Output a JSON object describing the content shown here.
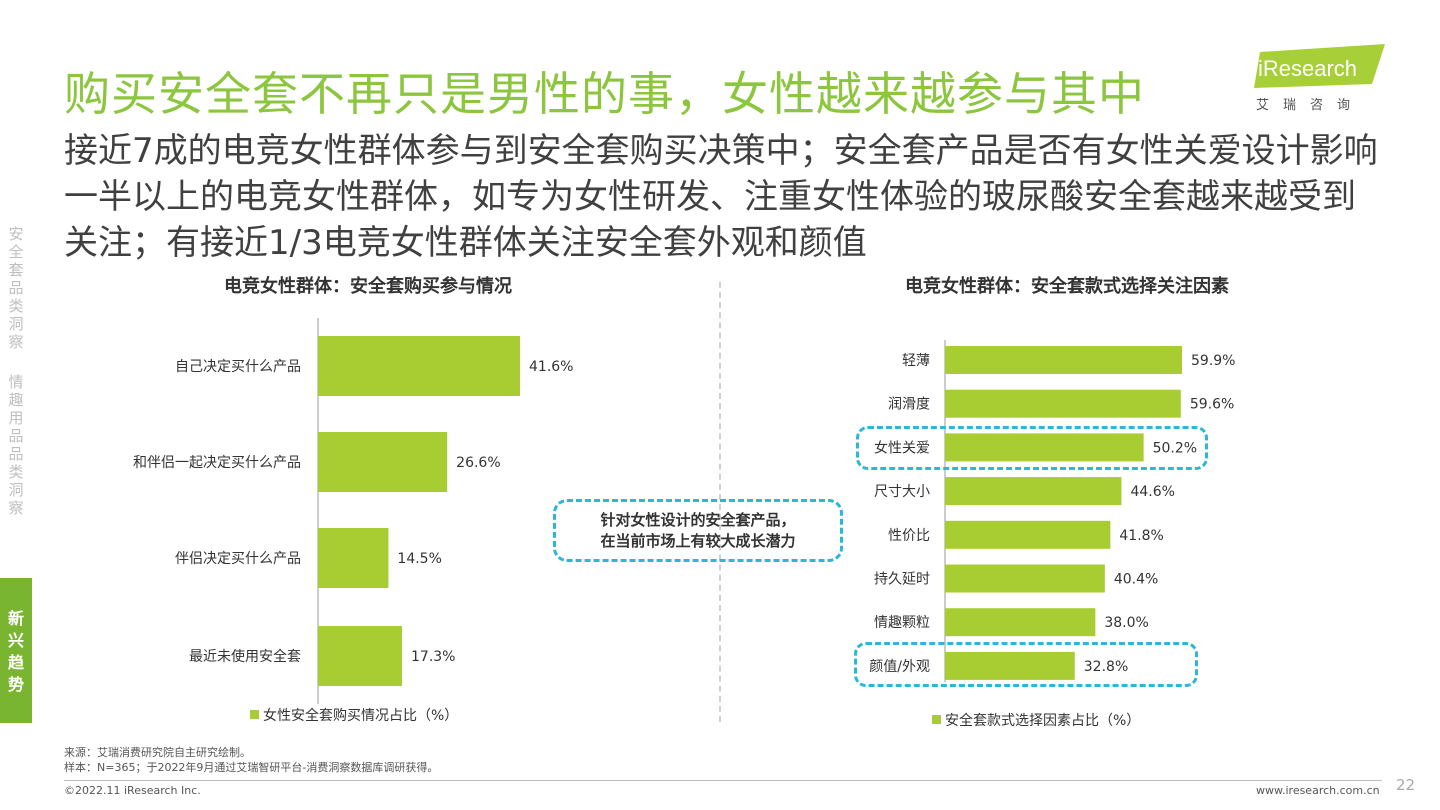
{
  "title": "购买安全套不再只是男性的事，女性越来越参与其中",
  "subtitle": "接近7成的电竞女性群体参与到安全套购买决策中；安全套产品是否有女性关爱设计影响一半以上的电竞女性群体，如专为女性研发、注重女性体验的玻尿酸安全套越来越受到关注；有接近1/3电竞女性群体关注安全套外观和颜值",
  "logo": {
    "text": "iResearch",
    "cn": "艾瑞咨询"
  },
  "side_nav": [
    {
      "label": "安全套品类洞察",
      "active": false
    },
    {
      "label": "情趣用品品类洞察",
      "active": false
    },
    {
      "label": "新兴趋势",
      "active": true
    }
  ],
  "callout": {
    "line1": "针对女性设计的安全套产品，",
    "line2": "在当前市场上有较大成长潜力"
  },
  "colors": {
    "accent": "#8cc63f",
    "bar": "#a8cd32",
    "highlight": "#2ab7d8"
  },
  "chart_data": [
    {
      "type": "bar",
      "orientation": "horizontal",
      "title": "电竞女性群体：安全套购买参与情况",
      "categories": [
        "自己决定买什么产品",
        "和伴侣一起决定买什么产品",
        "伴侣决定买什么产品",
        "最近未使用安全套"
      ],
      "series": [
        {
          "name": "女性安全套购买情况占比（%）",
          "values": [
            41.6,
            26.6,
            14.5,
            17.3
          ]
        }
      ],
      "value_labels": [
        "41.6%",
        "26.6%",
        "14.5%",
        "17.3%"
      ],
      "legend": "bottom"
    },
    {
      "type": "bar",
      "orientation": "horizontal",
      "title": "电竞女性群体：安全套款式选择关注因素",
      "categories": [
        "轻薄",
        "润滑度",
        "女性关爱",
        "尺寸大小",
        "性价比",
        "持久延时",
        "情趣颗粒",
        "颜值/外观"
      ],
      "series": [
        {
          "name": "安全套款式选择因素占比（%）",
          "values": [
            59.9,
            59.6,
            50.2,
            44.6,
            41.8,
            40.4,
            38.0,
            32.8
          ]
        }
      ],
      "value_labels": [
        "59.9%",
        "59.6%",
        "50.2%",
        "44.6%",
        "41.8%",
        "40.4%",
        "38.0%",
        "32.8%"
      ],
      "highlighted": [
        "女性关爱",
        "颜值/外观"
      ],
      "legend": "bottom"
    }
  ],
  "footer": {
    "source": "来源：艾瑞消费研究院自主研究绘制。",
    "sample": "样本：N=365；于2022年9月通过艾瑞智研平台-消费洞察数据库调研获得。",
    "copyright": "©2022.11 iResearch Inc.",
    "url": "www.iresearch.com.cn",
    "page": "22"
  }
}
